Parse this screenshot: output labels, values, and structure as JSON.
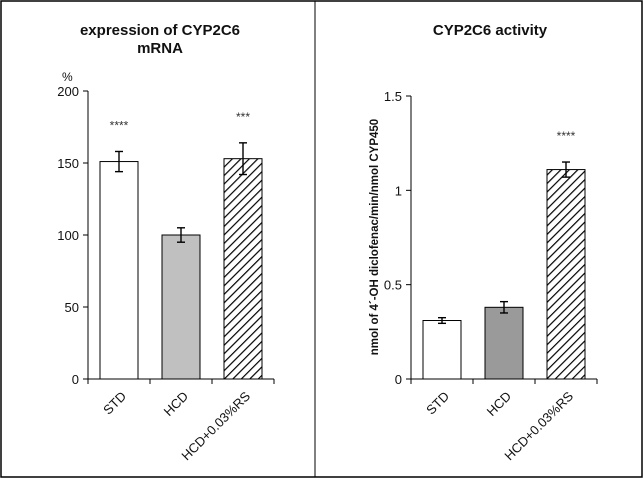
{
  "chart_data": [
    {
      "type": "bar",
      "title_line1": "expression of CYP2C6",
      "title_line2": "mRNA",
      "unit_label": "%",
      "ylabel": "",
      "xlabel": "",
      "ylim": [
        0,
        200
      ],
      "yticks": [
        "0",
        "50",
        "100",
        "150",
        "200"
      ],
      "ytick_values": [
        0,
        50,
        100,
        150,
        200
      ],
      "grid": false,
      "categories": [
        "STD",
        "HCD",
        "HCD+0.03%RS"
      ],
      "values": [
        151,
        100,
        153
      ],
      "errors": [
        7,
        5,
        11
      ],
      "fills": [
        "white",
        "#c0c0c0",
        "hatch"
      ],
      "annotations": [
        "****",
        "",
        "***"
      ]
    },
    {
      "type": "bar",
      "title": "CYP2C6 activity",
      "ylabel": "nmol of 4´-OH diclofenac/min/nmol CYP450",
      "xlabel": "",
      "ylim": [
        0,
        1.5
      ],
      "yticks": [
        "0",
        "0.5",
        "1",
        "1.5"
      ],
      "ytick_values": [
        0,
        0.5,
        1,
        1.5
      ],
      "grid": false,
      "categories": [
        "STD",
        "HCD",
        "HCD+0.03%RS"
      ],
      "values": [
        0.31,
        0.38,
        1.11
      ],
      "errors": [
        0.015,
        0.03,
        0.04
      ],
      "fills": [
        "white",
        "#9a9a9a",
        "hatch"
      ],
      "annotations": [
        "",
        "",
        "****"
      ]
    }
  ]
}
